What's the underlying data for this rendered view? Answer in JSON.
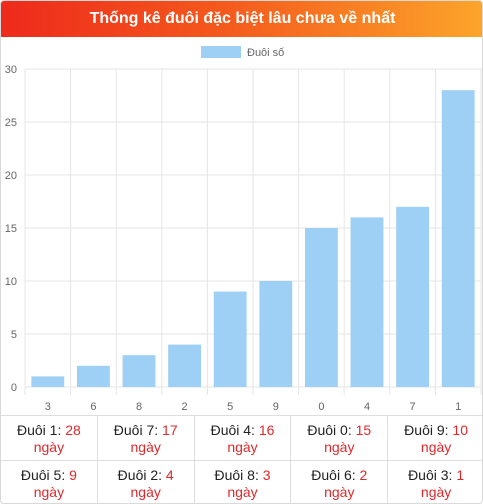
{
  "header": {
    "title": "Thống kê đuôi đặc biệt lâu chưa về nhất"
  },
  "colors": {
    "bar": "#9ecff4",
    "grid": "#e6e6e6",
    "axis_text": "#666666",
    "value_text": "#e0282b"
  },
  "chart_data": {
    "type": "bar",
    "title": "",
    "xlabel": "",
    "ylabel": "",
    "categories": [
      "3",
      "6",
      "8",
      "2",
      "5",
      "9",
      "0",
      "4",
      "7",
      "1"
    ],
    "series": [
      {
        "name": "Đuôi số",
        "values": [
          1,
          2,
          3,
          4,
          9,
          10,
          15,
          16,
          17,
          28
        ]
      }
    ],
    "ylim": [
      0,
      30
    ],
    "yticks": [
      "0",
      "5",
      "10",
      "15",
      "20",
      "25",
      "30"
    ],
    "grid": true,
    "legend": "top-center"
  },
  "stats": {
    "unit": "ngày",
    "rows": [
      [
        {
          "label": "Đuôi 1:",
          "value": "28"
        },
        {
          "label": "Đuôi 7:",
          "value": "17"
        },
        {
          "label": "Đuôi 4:",
          "value": "16"
        },
        {
          "label": "Đuôi 0:",
          "value": "15"
        },
        {
          "label": "Đuôi 9:",
          "value": "10"
        }
      ],
      [
        {
          "label": "Đuôi 5:",
          "value": "9"
        },
        {
          "label": "Đuôi 2:",
          "value": "4"
        },
        {
          "label": "Đuôi 8:",
          "value": "3"
        },
        {
          "label": "Đuôi 6:",
          "value": "2"
        },
        {
          "label": "Đuôi 3:",
          "value": "1"
        }
      ]
    ]
  }
}
